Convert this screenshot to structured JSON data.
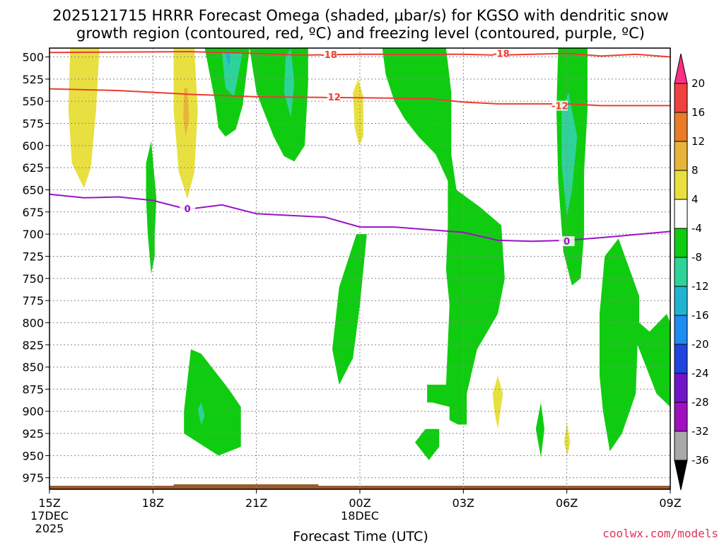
{
  "chart_data": {
    "type": "time-height contour",
    "title_line1": "2025121715 HRRR Forecast Omega (shaded, μbar/s) for KGSO with dendritic snow",
    "title_line2": "growth region (contoured, red, ºC) and freezing level (contoured, purple, ºC)",
    "xlabel": "Forecast Time (UTC)",
    "credit": "coolwx.com/models",
    "x_range": [
      0,
      18
    ],
    "y_range": [
      988,
      490
    ],
    "y_ticks": [
      500,
      525,
      550,
      575,
      600,
      625,
      650,
      675,
      700,
      725,
      750,
      775,
      800,
      825,
      850,
      875,
      900,
      925,
      950,
      975
    ],
    "x_ticks": [
      {
        "hour": 0,
        "label": "15Z",
        "sub1": "17DEC",
        "sub2": "2025"
      },
      {
        "hour": 3,
        "label": "18Z",
        "sub1": "",
        "sub2": ""
      },
      {
        "hour": 6,
        "label": "21Z",
        "sub1": "",
        "sub2": ""
      },
      {
        "hour": 9,
        "label": "00Z",
        "sub1": "18DEC",
        "sub2": ""
      },
      {
        "hour": 12,
        "label": "03Z",
        "sub1": "",
        "sub2": ""
      },
      {
        "hour": 15,
        "label": "06Z",
        "sub1": "",
        "sub2": ""
      },
      {
        "hour": 18,
        "label": "09Z",
        "sub1": "",
        "sub2": ""
      }
    ],
    "colorbar": {
      "labels": [
        "20",
        "16",
        "12",
        "8",
        "4",
        "-4",
        "-8",
        "-12",
        "-16",
        "-20",
        "-24",
        "-28",
        "-32",
        "-36"
      ],
      "colors": [
        "#ff2f85",
        "#f04040",
        "#e87c28",
        "#e8b43a",
        "#e8e040",
        "#ffffff",
        "#10cc10",
        "#2ed39a",
        "#20b4d0",
        "#1e8cf0",
        "#2044e0",
        "#7018c8",
        "#a010c0",
        "#a8a8a8",
        "#000000"
      ]
    },
    "contours": [
      {
        "name": "dgz-minus18",
        "label": "-18",
        "color": "#ee3c32",
        "points": [
          [
            0,
            495
          ],
          [
            4,
            494
          ],
          [
            6,
            496
          ],
          [
            7.2,
            498
          ],
          [
            9,
            497
          ],
          [
            12,
            497
          ],
          [
            13,
            498
          ],
          [
            15,
            496
          ],
          [
            16,
            499
          ],
          [
            17,
            497
          ],
          [
            18,
            500
          ]
        ]
      },
      {
        "name": "dgz-minus12",
        "label": "-12",
        "color": "#ee3c32",
        "points": [
          [
            0,
            536
          ],
          [
            2,
            538
          ],
          [
            4,
            542
          ],
          [
            6,
            545
          ],
          [
            9,
            546
          ],
          [
            11,
            547
          ],
          [
            12,
            551
          ],
          [
            13,
            553
          ],
          [
            15,
            553
          ],
          [
            16,
            555
          ],
          [
            18,
            555
          ]
        ]
      },
      {
        "name": "freezing-level-0",
        "label": "0",
        "color": "#9a12c8",
        "points": [
          [
            0,
            655
          ],
          [
            1,
            659
          ],
          [
            2,
            658
          ],
          [
            3,
            662
          ],
          [
            4,
            672
          ],
          [
            5,
            667
          ],
          [
            6,
            677
          ],
          [
            8,
            681
          ],
          [
            9,
            692
          ],
          [
            10,
            692
          ],
          [
            12,
            698
          ],
          [
            13,
            707
          ],
          [
            14,
            708
          ],
          [
            15,
            707
          ],
          [
            16,
            704
          ],
          [
            18,
            697
          ]
        ]
      }
    ],
    "contour_labels": [
      {
        "text": "-18",
        "hour": 8.1,
        "pressure": 497,
        "color": "#ee3c32"
      },
      {
        "text": "-18",
        "hour": 13.1,
        "pressure": 496,
        "color": "#ee3c32"
      },
      {
        "text": "-12",
        "hour": 8.2,
        "pressure": 545,
        "color": "#ee3c32"
      },
      {
        "text": "-12",
        "hour": 14.8,
        "pressure": 555,
        "color": "#ee3c32"
      },
      {
        "text": "0",
        "hour": 4.0,
        "pressure": 671,
        "color": "#9a12c8"
      },
      {
        "text": "0",
        "hour": 15.0,
        "pressure": 708,
        "color": "#9a12c8"
      }
    ],
    "shaded_regions": [
      {
        "name": "yellow-plume-1",
        "color": "#e8e040",
        "points": [
          [
            0.6,
            490
          ],
          [
            1.45,
            490
          ],
          [
            1.35,
            560
          ],
          [
            1.2,
            625
          ],
          [
            1.0,
            648
          ],
          [
            0.65,
            620
          ],
          [
            0.55,
            560
          ]
        ]
      },
      {
        "name": "yellow-plume-2",
        "color": "#e8e040",
        "points": [
          [
            3.6,
            490
          ],
          [
            4.2,
            490
          ],
          [
            4.3,
            560
          ],
          [
            4.2,
            630
          ],
          [
            4.0,
            660
          ],
          [
            3.75,
            630
          ],
          [
            3.6,
            560
          ]
        ]
      },
      {
        "name": "orange-streak",
        "color": "#e8b43a",
        "points": [
          [
            3.9,
            535
          ],
          [
            4.0,
            535
          ],
          [
            4.05,
            570
          ],
          [
            3.95,
            590
          ],
          [
            3.88,
            570
          ]
        ]
      },
      {
        "name": "yellow-blob-00z",
        "color": "#e8e040",
        "points": [
          [
            8.8,
            540
          ],
          [
            8.95,
            525
          ],
          [
            9.1,
            545
          ],
          [
            9.1,
            590
          ],
          [
            8.98,
            600
          ],
          [
            8.85,
            580
          ]
        ]
      },
      {
        "name": "yellow-blob-04z",
        "color": "#e8e040",
        "points": [
          [
            12.85,
            880
          ],
          [
            13.0,
            860
          ],
          [
            13.15,
            880
          ],
          [
            13.0,
            920
          ],
          [
            12.9,
            900
          ]
        ]
      },
      {
        "name": "yellow-blob-06z",
        "color": "#e8e040",
        "points": [
          [
            14.92,
            935
          ],
          [
            15.0,
            912
          ],
          [
            15.1,
            935
          ],
          [
            15.02,
            950
          ]
        ]
      },
      {
        "name": "green-upper-20z",
        "color": "#10cc10",
        "points": [
          [
            4.5,
            490
          ],
          [
            5.8,
            490
          ],
          [
            5.6,
            555
          ],
          [
            5.4,
            582
          ],
          [
            5.1,
            590
          ],
          [
            4.9,
            580
          ],
          [
            4.8,
            550
          ]
        ]
      },
      {
        "name": "green-upper-2130z",
        "color": "#10cc10",
        "points": [
          [
            5.8,
            490
          ],
          [
            7.5,
            490
          ],
          [
            7.5,
            530
          ],
          [
            7.4,
            600
          ],
          [
            7.1,
            618
          ],
          [
            6.8,
            612
          ],
          [
            6.5,
            590
          ],
          [
            6.2,
            560
          ],
          [
            6.0,
            540
          ]
        ]
      },
      {
        "name": "green-main-band",
        "color": "#10cc10",
        "points": [
          [
            9.65,
            490
          ],
          [
            11.5,
            490
          ],
          [
            11.65,
            540
          ],
          [
            11.65,
            610
          ],
          [
            11.8,
            650
          ],
          [
            12.5,
            670
          ],
          [
            13.1,
            690
          ],
          [
            13.2,
            750
          ],
          [
            13.0,
            790
          ],
          [
            12.4,
            830
          ],
          [
            12.1,
            880
          ],
          [
            12.1,
            915
          ],
          [
            11.85,
            915
          ],
          [
            11.6,
            910
          ],
          [
            11.6,
            895
          ],
          [
            11.1,
            890
          ],
          [
            10.95,
            890
          ],
          [
            10.95,
            870
          ],
          [
            11.5,
            870
          ],
          [
            11.6,
            780
          ],
          [
            11.5,
            740
          ],
          [
            11.55,
            690
          ],
          [
            11.55,
            640
          ],
          [
            11.2,
            610
          ],
          [
            10.7,
            590
          ],
          [
            10.3,
            570
          ],
          [
            10.0,
            550
          ],
          [
            9.75,
            520
          ]
        ]
      },
      {
        "name": "green-blob-2330z",
        "color": "#10cc10",
        "points": [
          [
            8.9,
            700
          ],
          [
            9.2,
            700
          ],
          [
            9.0,
            780
          ],
          [
            8.8,
            840
          ],
          [
            8.4,
            870
          ],
          [
            8.2,
            830
          ],
          [
            8.4,
            760
          ]
        ]
      },
      {
        "name": "green-lower-1930z",
        "color": "#10cc10",
        "points": [
          [
            3.9,
            900
          ],
          [
            4.1,
            830
          ],
          [
            4.4,
            835
          ],
          [
            5.2,
            875
          ],
          [
            5.55,
            895
          ],
          [
            5.55,
            940
          ],
          [
            4.9,
            950
          ],
          [
            4.3,
            935
          ],
          [
            3.9,
            925
          ]
        ]
      },
      {
        "name": "green-lower-02z",
        "color": "#10cc10",
        "points": [
          [
            10.6,
            935
          ],
          [
            10.9,
            920
          ],
          [
            11.3,
            920
          ],
          [
            11.3,
            940
          ],
          [
            11.0,
            955
          ]
        ]
      },
      {
        "name": "green-lower-05z",
        "color": "#10cc10",
        "points": [
          [
            14.1,
            920
          ],
          [
            14.25,
            890
          ],
          [
            14.35,
            920
          ],
          [
            14.25,
            952
          ]
        ]
      },
      {
        "name": "green-slim-1730z",
        "color": "#10cc10",
        "points": [
          [
            2.8,
            620
          ],
          [
            2.95,
            595
          ],
          [
            3.1,
            660
          ],
          [
            3.05,
            700
          ],
          [
            3.05,
            725
          ],
          [
            2.95,
            745
          ],
          [
            2.85,
            700
          ],
          [
            2.8,
            660
          ]
        ]
      },
      {
        "name": "green-upper-06z",
        "color": "#10cc10",
        "points": [
          [
            14.75,
            490
          ],
          [
            15.6,
            490
          ],
          [
            15.6,
            560
          ],
          [
            15.5,
            630
          ],
          [
            15.5,
            700
          ],
          [
            15.4,
            750
          ],
          [
            15.15,
            758
          ],
          [
            14.9,
            720
          ],
          [
            14.75,
            640
          ],
          [
            14.7,
            560
          ]
        ]
      },
      {
        "name": "green-lower-0730z",
        "color": "#10cc10",
        "points": [
          [
            16.1,
            725
          ],
          [
            16.5,
            705
          ],
          [
            17.1,
            770
          ],
          [
            17.1,
            800
          ],
          [
            17.4,
            810
          ],
          [
            17.9,
            790
          ],
          [
            18.0,
            800
          ],
          [
            18.0,
            895
          ],
          [
            17.6,
            880
          ],
          [
            17.3,
            850
          ],
          [
            17.05,
            825
          ],
          [
            17.0,
            880
          ],
          [
            16.6,
            925
          ],
          [
            16.25,
            945
          ],
          [
            16.05,
            900
          ],
          [
            15.95,
            860
          ],
          [
            15.95,
            790
          ]
        ]
      },
      {
        "name": "teal-upper-20z",
        "color": "#2ed39a",
        "points": [
          [
            5.0,
            495
          ],
          [
            5.6,
            495
          ],
          [
            5.35,
            545
          ],
          [
            5.1,
            535
          ]
        ]
      },
      {
        "name": "teal-upper-2130z",
        "color": "#2ed39a",
        "points": [
          [
            6.85,
            500
          ],
          [
            7.0,
            490
          ],
          [
            7.1,
            530
          ],
          [
            7.0,
            568
          ],
          [
            6.8,
            540
          ]
        ]
      },
      {
        "name": "teal-upper-06z",
        "color": "#2ed39a",
        "points": [
          [
            14.85,
            560
          ],
          [
            15.05,
            540
          ],
          [
            15.3,
            590
          ],
          [
            15.15,
            650
          ],
          [
            15.0,
            680
          ],
          [
            14.85,
            620
          ]
        ]
      },
      {
        "name": "cyan-upper-20z",
        "color": "#20b4d0",
        "points": [
          [
            5.1,
            496
          ],
          [
            5.2,
            492
          ],
          [
            5.25,
            505
          ],
          [
            5.18,
            510
          ]
        ]
      },
      {
        "name": "teal-lower-1930z",
        "color": "#2ed39a",
        "points": [
          [
            4.3,
            898
          ],
          [
            4.4,
            890
          ],
          [
            4.5,
            905
          ],
          [
            4.4,
            915
          ]
        ]
      }
    ]
  }
}
